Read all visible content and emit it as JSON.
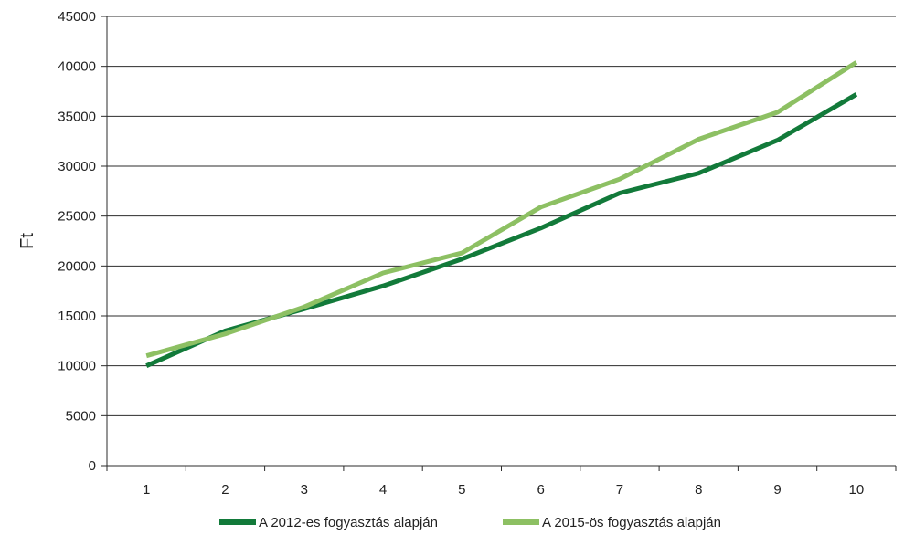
{
  "chart_data": {
    "type": "line",
    "title": "",
    "xlabel": "",
    "ylabel": "Ft",
    "categories": [
      "1",
      "2",
      "3",
      "4",
      "5",
      "6",
      "7",
      "8",
      "9",
      "10"
    ],
    "ylim": [
      0,
      45000
    ],
    "yticks": [
      0,
      5000,
      10000,
      15000,
      20000,
      25000,
      30000,
      35000,
      40000,
      45000
    ],
    "grid": true,
    "legend_position": "bottom",
    "series": [
      {
        "name": "A 2012-es fogyasztás alapján",
        "color": "#127a3a",
        "values": [
          10000,
          13500,
          15700,
          18000,
          20700,
          23800,
          27300,
          29300,
          32600,
          37200
        ]
      },
      {
        "name": "A 2015-ös fogyasztás alapján",
        "color": "#8dc063",
        "values": [
          11000,
          13200,
          15900,
          19300,
          21300,
          25900,
          28700,
          32700,
          35400,
          40400
        ]
      }
    ]
  }
}
